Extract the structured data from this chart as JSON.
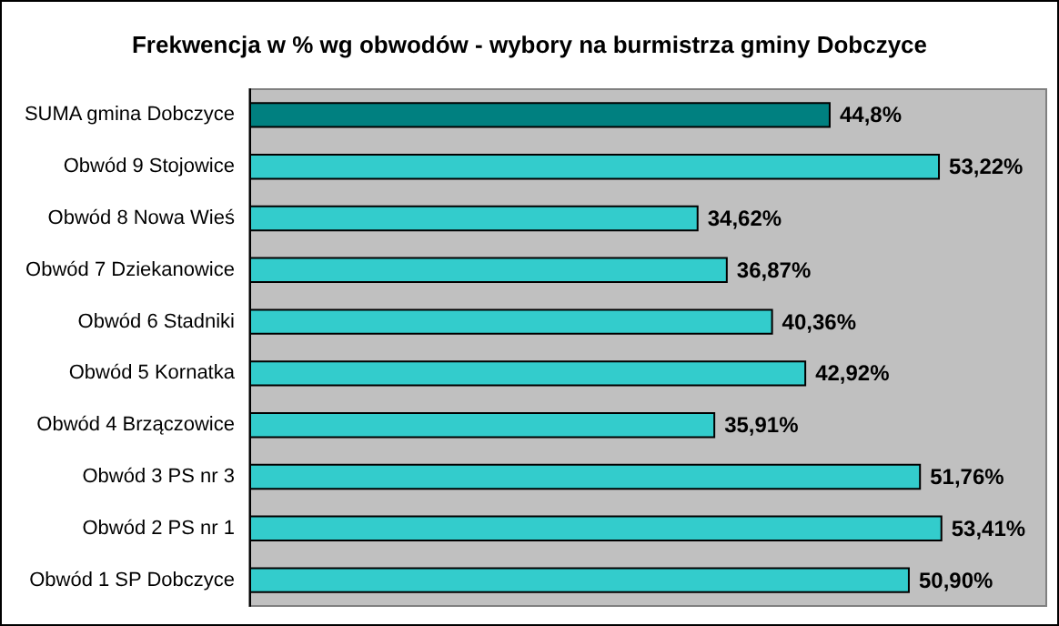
{
  "chart_data": {
    "type": "bar",
    "orientation": "horizontal",
    "title": "Frekwencja w % wg obwodów - wybory na burmistrza gminy Dobczyce",
    "categories": [
      "SUMA gmina Dobczyce",
      "Obwód 9 Stojowice",
      "Obwód 8 Nowa Wieś",
      "Obwód 7 Dziekanowice",
      "Obwód 6 Stadniki",
      "Obwód 5 Kornatka",
      "Obwód 4 Brzączowice",
      "Obwód 3 PS nr 3",
      "Obwód 2 PS nr 1",
      "Obwód 1 SP Dobczyce"
    ],
    "values": [
      44.8,
      53.22,
      34.62,
      36.87,
      40.36,
      42.92,
      35.91,
      51.76,
      53.41,
      50.9
    ],
    "colors": [
      "#008080",
      "#33cccc",
      "#33cccc",
      "#33cccc",
      "#33cccc",
      "#33cccc",
      "#33cccc",
      "#33cccc",
      "#33cccc",
      "#33cccc"
    ],
    "value_labels": [
      "44,8%",
      "53,22%",
      "34,62%",
      "36,87%",
      "40,36%",
      "42,92%",
      "35,91%",
      "51,76%",
      "53,41%",
      "50,90%"
    ],
    "grid": false
  }
}
